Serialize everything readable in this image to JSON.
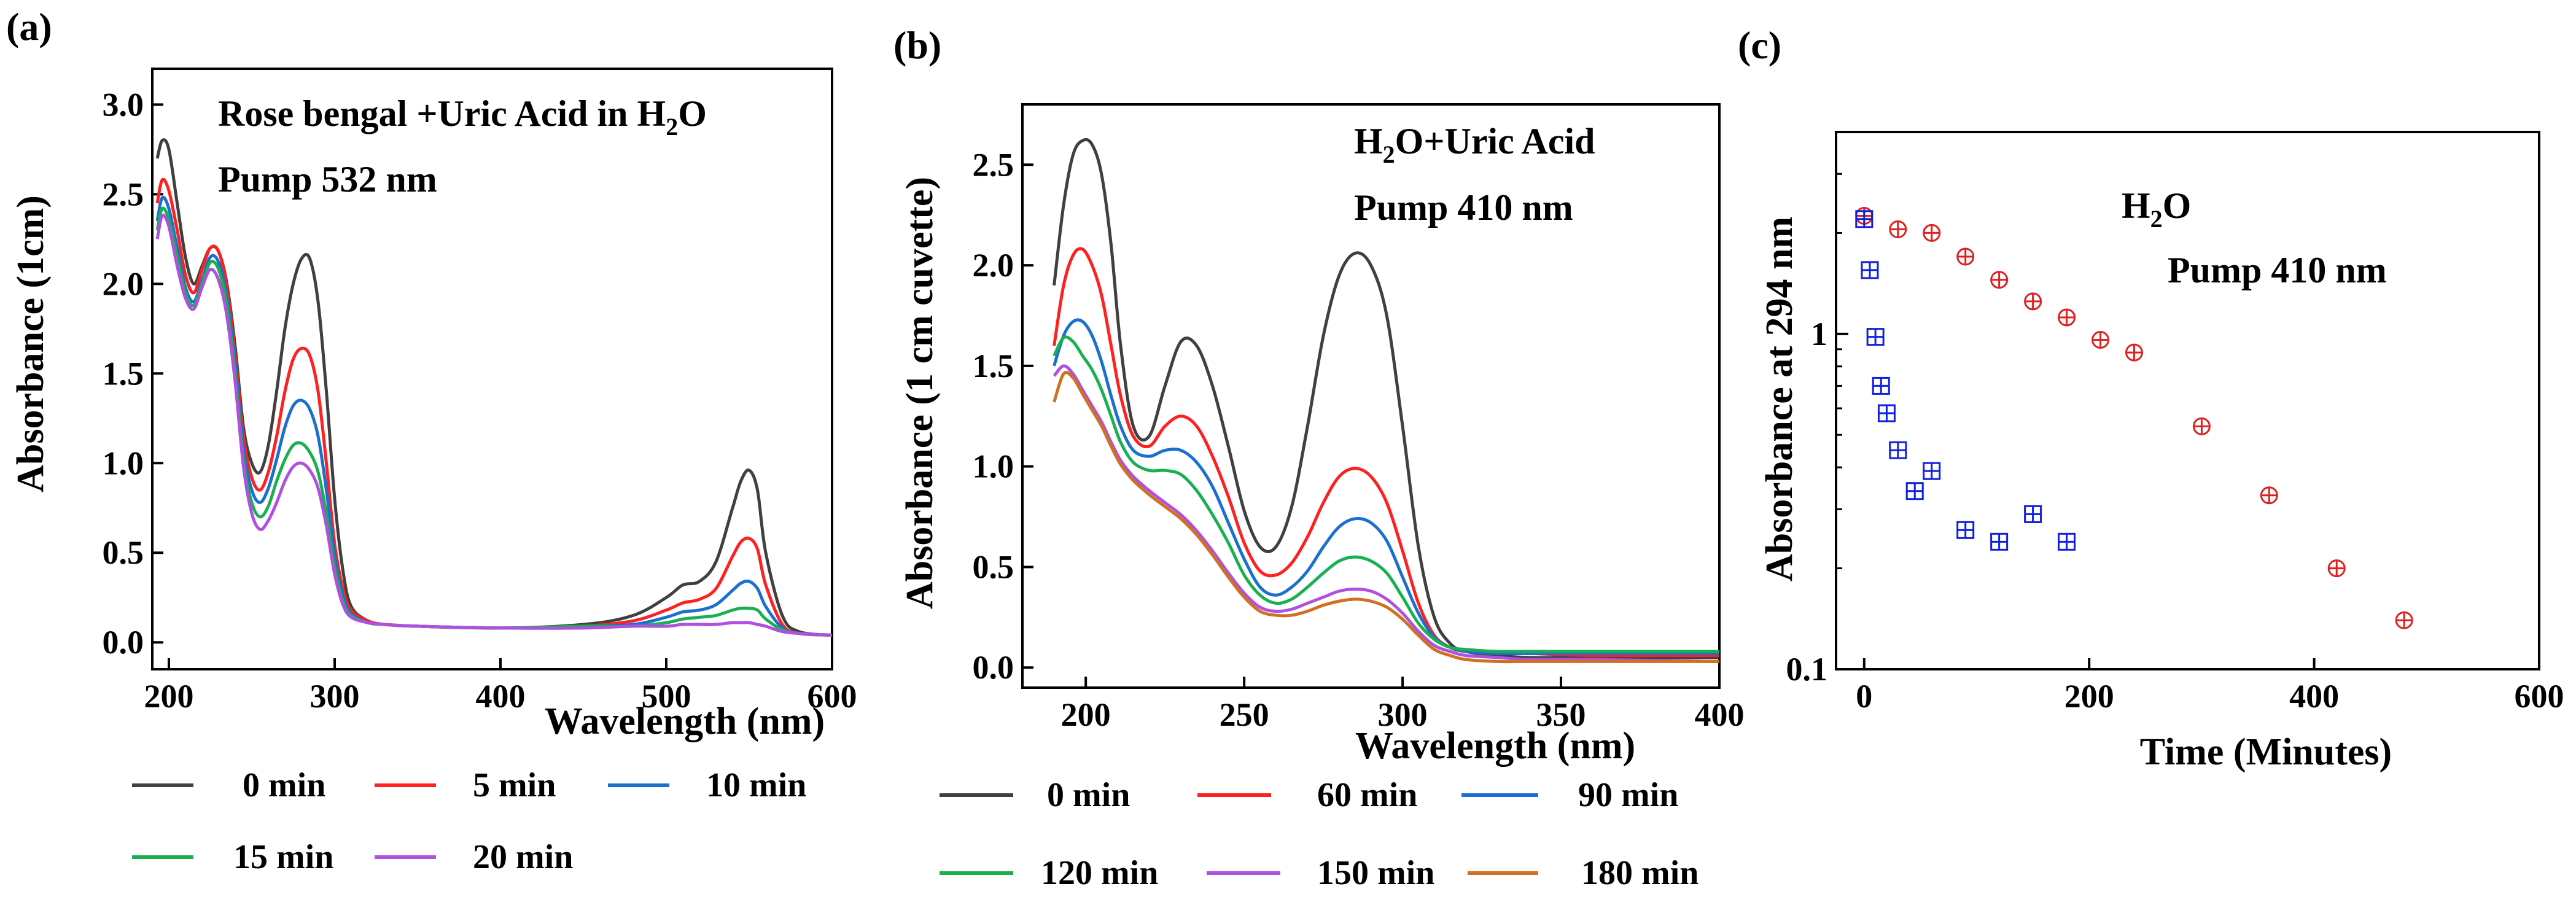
{
  "chart_data": [
    {
      "panel": "(a)",
      "type": "line",
      "annotation_main": "Rose bengal +Uric Acid in H",
      "annotation_sub": "2",
      "annotation_tail": "O",
      "annotation2": "Pump 532 nm",
      "xlabel": "Wavelength (nm)",
      "ylabel": "Absorbance (1cm)",
      "xlim": [
        190,
        600
      ],
      "ylim": [
        -0.15,
        3.2
      ],
      "xticks": [
        200,
        300,
        400,
        500,
        600
      ],
      "yticks": [
        0.0,
        0.5,
        1.0,
        1.5,
        2.0,
        2.5,
        3.0
      ],
      "ytick_labels": [
        "0.0",
        "0.5",
        "1.0",
        "1.5",
        "2.0",
        "2.5",
        "3.0"
      ],
      "series": [
        {
          "name": "0 min",
          "color": "#404040",
          "x": [
            193,
            196,
            200,
            205,
            210,
            215,
            220,
            225,
            230,
            235,
            240,
            245,
            250,
            255,
            260,
            265,
            270,
            275,
            280,
            285,
            290,
            295,
            300,
            305,
            310,
            320,
            330,
            350,
            400,
            450,
            480,
            500,
            510,
            520,
            530,
            540,
            545,
            550,
            555,
            560,
            570,
            580,
            600
          ],
          "y": [
            2.7,
            2.8,
            2.75,
            2.45,
            2.15,
            2.0,
            2.1,
            2.2,
            2.18,
            2.0,
            1.65,
            1.2,
            1.0,
            0.95,
            1.1,
            1.4,
            1.75,
            2.0,
            2.14,
            2.14,
            1.9,
            1.4,
            0.8,
            0.4,
            0.2,
            0.12,
            0.1,
            0.09,
            0.08,
            0.1,
            0.15,
            0.25,
            0.32,
            0.34,
            0.45,
            0.75,
            0.9,
            0.96,
            0.85,
            0.5,
            0.15,
            0.06,
            0.04
          ]
        },
        {
          "name": "5 min",
          "color": "#ff2020",
          "x": [
            193,
            196,
            200,
            205,
            210,
            215,
            220,
            225,
            230,
            235,
            240,
            245,
            250,
            255,
            260,
            265,
            270,
            275,
            280,
            285,
            290,
            295,
            300,
            305,
            310,
            320,
            330,
            350,
            400,
            450,
            480,
            500,
            510,
            520,
            530,
            540,
            545,
            550,
            555,
            560,
            570,
            580,
            600
          ],
          "y": [
            2.45,
            2.58,
            2.52,
            2.3,
            2.05,
            1.95,
            2.08,
            2.2,
            2.18,
            1.98,
            1.6,
            1.15,
            0.92,
            0.85,
            0.95,
            1.15,
            1.4,
            1.58,
            1.64,
            1.6,
            1.4,
            1.0,
            0.55,
            0.3,
            0.18,
            0.12,
            0.1,
            0.09,
            0.08,
            0.09,
            0.12,
            0.18,
            0.22,
            0.24,
            0.3,
            0.48,
            0.56,
            0.58,
            0.52,
            0.32,
            0.1,
            0.05,
            0.04
          ]
        },
        {
          "name": "10 min",
          "color": "#1a6fd0",
          "x": [
            193,
            196,
            200,
            205,
            210,
            215,
            220,
            225,
            230,
            235,
            240,
            245,
            250,
            255,
            260,
            265,
            270,
            275,
            280,
            285,
            290,
            295,
            300,
            305,
            310,
            320,
            330,
            350,
            400,
            450,
            480,
            500,
            510,
            520,
            530,
            540,
            545,
            550,
            555,
            560,
            570,
            580,
            600
          ],
          "y": [
            2.35,
            2.48,
            2.42,
            2.2,
            1.98,
            1.9,
            2.02,
            2.15,
            2.12,
            1.92,
            1.55,
            1.08,
            0.85,
            0.78,
            0.86,
            1.02,
            1.2,
            1.32,
            1.35,
            1.3,
            1.15,
            0.85,
            0.48,
            0.26,
            0.16,
            0.11,
            0.1,
            0.09,
            0.08,
            0.09,
            0.1,
            0.14,
            0.17,
            0.18,
            0.21,
            0.29,
            0.33,
            0.34,
            0.3,
            0.2,
            0.08,
            0.05,
            0.04
          ]
        },
        {
          "name": "15 min",
          "color": "#18b050",
          "x": [
            193,
            196,
            200,
            205,
            210,
            215,
            220,
            225,
            230,
            235,
            240,
            245,
            250,
            255,
            260,
            265,
            270,
            275,
            280,
            285,
            290,
            295,
            300,
            305,
            310,
            320,
            330,
            350,
            400,
            450,
            480,
            500,
            510,
            520,
            530,
            540,
            545,
            550,
            555,
            560,
            570,
            580,
            600
          ],
          "y": [
            2.3,
            2.42,
            2.36,
            2.15,
            1.95,
            1.88,
            2.0,
            2.12,
            2.08,
            1.88,
            1.5,
            1.02,
            0.78,
            0.7,
            0.76,
            0.9,
            1.02,
            1.1,
            1.11,
            1.06,
            0.95,
            0.72,
            0.42,
            0.23,
            0.15,
            0.11,
            0.1,
            0.09,
            0.08,
            0.09,
            0.09,
            0.11,
            0.13,
            0.14,
            0.15,
            0.18,
            0.19,
            0.19,
            0.18,
            0.13,
            0.07,
            0.05,
            0.04
          ]
        },
        {
          "name": "20 min",
          "color": "#b050e0",
          "x": [
            193,
            196,
            200,
            205,
            210,
            215,
            220,
            225,
            230,
            235,
            240,
            245,
            250,
            255,
            260,
            265,
            270,
            275,
            280,
            285,
            290,
            295,
            300,
            305,
            310,
            320,
            330,
            350,
            400,
            450,
            480,
            500,
            510,
            520,
            530,
            540,
            545,
            550,
            555,
            560,
            570,
            580,
            600
          ],
          "y": [
            2.25,
            2.38,
            2.32,
            2.1,
            1.92,
            1.86,
            1.98,
            2.08,
            2.02,
            1.82,
            1.45,
            0.98,
            0.72,
            0.63,
            0.68,
            0.78,
            0.9,
            0.98,
            1.0,
            0.96,
            0.86,
            0.65,
            0.38,
            0.21,
            0.14,
            0.11,
            0.1,
            0.09,
            0.08,
            0.08,
            0.09,
            0.09,
            0.1,
            0.1,
            0.1,
            0.11,
            0.11,
            0.11,
            0.1,
            0.09,
            0.06,
            0.05,
            0.04
          ]
        }
      ],
      "legend": [
        "0 min",
        "5 min",
        "10 min",
        "15 min",
        "20 min"
      ]
    },
    {
      "panel": "(b)",
      "type": "line",
      "annotation_main": "H",
      "annotation_sub": "2",
      "annotation_tail": "O+Uric Acid",
      "annotation2": "Pump 410 nm",
      "xlabel": "Wavelength (nm)",
      "ylabel": "Absorbance (1 cm cuvette)",
      "xlim": [
        180,
        400
      ],
      "ylim": [
        -0.1,
        2.8
      ],
      "xticks": [
        200,
        250,
        300,
        350,
        400
      ],
      "yticks": [
        0.0,
        0.5,
        1.0,
        1.5,
        2.0,
        2.5
      ],
      "ytick_labels": [
        "0.0",
        "0.5",
        "1.0",
        "1.5",
        "2.0",
        "2.5"
      ],
      "series": [
        {
          "name": "0 min",
          "color": "#404040",
          "x": [
            190,
            193,
            196,
            199,
            202,
            205,
            208,
            211,
            215,
            220,
            225,
            230,
            235,
            240,
            245,
            250,
            255,
            260,
            265,
            270,
            275,
            280,
            285,
            290,
            295,
            300,
            305,
            310,
            315,
            320,
            330,
            340,
            360,
            400
          ],
          "y": [
            1.9,
            2.3,
            2.55,
            2.62,
            2.6,
            2.45,
            2.1,
            1.6,
            1.2,
            1.15,
            1.4,
            1.62,
            1.6,
            1.4,
            1.1,
            0.78,
            0.6,
            0.6,
            0.8,
            1.2,
            1.65,
            1.95,
            2.06,
            2.0,
            1.75,
            1.2,
            0.6,
            0.25,
            0.12,
            0.08,
            0.06,
            0.05,
            0.05,
            0.05
          ]
        },
        {
          "name": "60 min",
          "color": "#ff2020",
          "x": [
            190,
            193,
            196,
            199,
            202,
            205,
            208,
            211,
            215,
            220,
            225,
            230,
            235,
            240,
            245,
            250,
            255,
            260,
            265,
            270,
            275,
            280,
            285,
            290,
            295,
            300,
            305,
            310,
            315,
            320,
            330,
            340,
            360,
            400
          ],
          "y": [
            1.6,
            1.9,
            2.05,
            2.08,
            2.0,
            1.85,
            1.6,
            1.35,
            1.15,
            1.1,
            1.2,
            1.25,
            1.2,
            1.05,
            0.85,
            0.62,
            0.48,
            0.46,
            0.52,
            0.65,
            0.82,
            0.95,
            0.99,
            0.95,
            0.82,
            0.58,
            0.32,
            0.16,
            0.1,
            0.08,
            0.07,
            0.07,
            0.06,
            0.06
          ]
        },
        {
          "name": "90 min",
          "color": "#1a6fd0",
          "x": [
            190,
            193,
            196,
            199,
            202,
            205,
            208,
            211,
            215,
            220,
            225,
            230,
            235,
            240,
            245,
            250,
            255,
            260,
            265,
            270,
            275,
            280,
            285,
            290,
            295,
            300,
            305,
            310,
            315,
            320,
            330,
            340,
            360,
            400
          ],
          "y": [
            1.5,
            1.65,
            1.72,
            1.72,
            1.65,
            1.52,
            1.35,
            1.2,
            1.08,
            1.05,
            1.08,
            1.08,
            1.02,
            0.9,
            0.72,
            0.54,
            0.4,
            0.36,
            0.4,
            0.48,
            0.6,
            0.7,
            0.74,
            0.72,
            0.63,
            0.45,
            0.27,
            0.15,
            0.1,
            0.08,
            0.07,
            0.07,
            0.07,
            0.07
          ]
        },
        {
          "name": "120 min",
          "color": "#18b050",
          "x": [
            190,
            193,
            196,
            199,
            202,
            205,
            208,
            211,
            215,
            220,
            225,
            230,
            235,
            240,
            245,
            250,
            255,
            260,
            265,
            270,
            275,
            280,
            285,
            290,
            295,
            300,
            305,
            310,
            315,
            320,
            330,
            340,
            360,
            400
          ],
          "y": [
            1.55,
            1.64,
            1.62,
            1.55,
            1.48,
            1.38,
            1.25,
            1.12,
            1.02,
            0.98,
            0.98,
            0.96,
            0.88,
            0.76,
            0.62,
            0.46,
            0.36,
            0.32,
            0.34,
            0.4,
            0.47,
            0.53,
            0.55,
            0.53,
            0.47,
            0.35,
            0.22,
            0.14,
            0.1,
            0.09,
            0.08,
            0.08,
            0.08,
            0.08
          ]
        },
        {
          "name": "150 min",
          "color": "#b050e0",
          "x": [
            190,
            193,
            196,
            199,
            202,
            205,
            208,
            211,
            215,
            220,
            225,
            230,
            235,
            240,
            245,
            250,
            255,
            260,
            265,
            270,
            275,
            280,
            285,
            290,
            295,
            300,
            305,
            310,
            315,
            320,
            330,
            340,
            360,
            400
          ],
          "y": [
            1.45,
            1.5,
            1.46,
            1.38,
            1.3,
            1.22,
            1.12,
            1.03,
            0.95,
            0.88,
            0.82,
            0.76,
            0.68,
            0.58,
            0.47,
            0.37,
            0.3,
            0.28,
            0.29,
            0.32,
            0.35,
            0.38,
            0.39,
            0.38,
            0.34,
            0.27,
            0.18,
            0.11,
            0.08,
            0.06,
            0.05,
            0.04,
            0.04,
            0.03
          ]
        },
        {
          "name": "180 min",
          "color": "#d07020",
          "x": [
            190,
            193,
            196,
            199,
            202,
            205,
            208,
            211,
            215,
            220,
            225,
            230,
            235,
            240,
            245,
            250,
            255,
            260,
            265,
            270,
            275,
            280,
            285,
            290,
            295,
            300,
            305,
            310,
            315,
            320,
            330,
            340,
            360,
            400
          ],
          "y": [
            1.32,
            1.46,
            1.44,
            1.36,
            1.28,
            1.2,
            1.1,
            1.01,
            0.93,
            0.86,
            0.8,
            0.74,
            0.66,
            0.56,
            0.45,
            0.35,
            0.28,
            0.26,
            0.26,
            0.28,
            0.31,
            0.33,
            0.34,
            0.33,
            0.3,
            0.24,
            0.16,
            0.09,
            0.06,
            0.04,
            0.03,
            0.03,
            0.03,
            0.03
          ]
        }
      ],
      "legend": [
        "0 min",
        "60 min",
        "90 min",
        "120 min",
        "150 min",
        "180 min"
      ]
    },
    {
      "panel": "(c)",
      "type": "scatter",
      "yscale": "log",
      "annotation_main": "H",
      "annotation_sub": "2",
      "annotation_tail": "O",
      "annotation2": "Pump 410 nm",
      "xlabel": "Time (Minutes)",
      "ylabel": "Absorbance at 294 nm",
      "xlim": [
        -25,
        600
      ],
      "ylim": [
        0.1,
        4.0
      ],
      "xticks": [
        0,
        200,
        400,
        600
      ],
      "yticks": [
        0.1,
        1
      ],
      "ytick_labels": [
        "0.1",
        "1"
      ],
      "series": [
        {
          "name": "red",
          "color": "#e02020",
          "marker": "circle-plus",
          "x": [
            0,
            30,
            60,
            90,
            120,
            150,
            180,
            210,
            240,
            300,
            360,
            420,
            480
          ],
          "y": [
            2.25,
            2.05,
            2.0,
            1.7,
            1.45,
            1.25,
            1.12,
            0.96,
            0.88,
            0.53,
            0.33,
            0.2,
            0.14
          ]
        },
        {
          "name": "blue",
          "color": "#1020e0",
          "marker": "square-plus",
          "x": [
            0,
            5,
            10,
            15,
            20,
            30,
            45,
            60,
            90,
            120,
            150,
            180
          ],
          "y": [
            2.2,
            1.55,
            0.98,
            0.7,
            0.58,
            0.45,
            0.34,
            0.39,
            0.26,
            0.24,
            0.29,
            0.24
          ]
        }
      ]
    }
  ]
}
